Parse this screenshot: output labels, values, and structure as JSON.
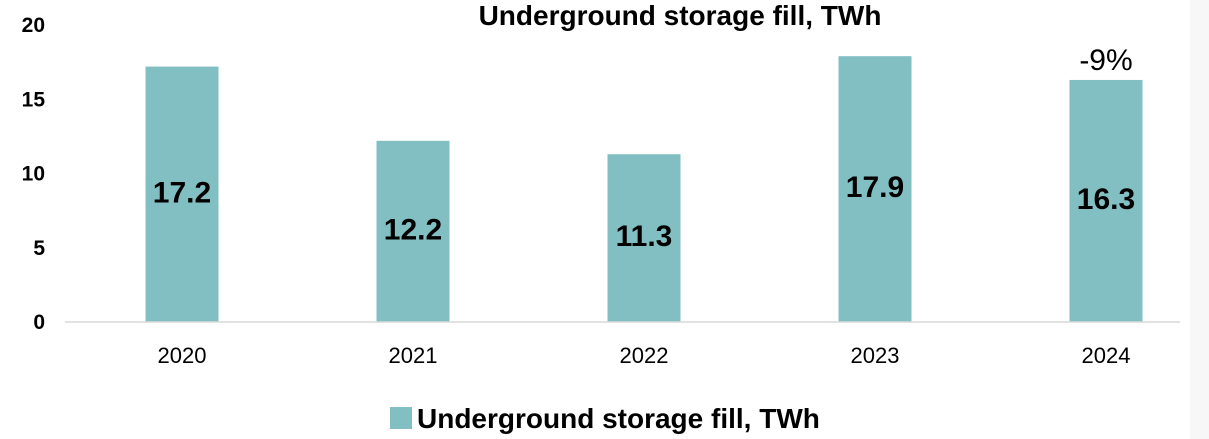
{
  "chart_data": {
    "type": "bar",
    "title": "Underground storage fill, TWh",
    "categories": [
      "2020",
      "2021",
      "2022",
      "2023",
      "2024"
    ],
    "series": [
      {
        "name": "Underground storage fill, TWh",
        "values": [
          17.2,
          12.2,
          11.3,
          17.9,
          16.3
        ],
        "labels": [
          "17.2",
          "12.2",
          "11.3",
          "17.9",
          "16.3"
        ]
      }
    ],
    "yticks": [
      "0",
      "5",
      "10",
      "15",
      "20"
    ],
    "ylim": [
      0,
      20
    ],
    "grid": false,
    "legend_position": "bottom-center",
    "annotation": {
      "category": "2024",
      "text": "-9%"
    },
    "colors": {
      "bar": "#82bfc2",
      "axis": "#d9d9d9",
      "text": "#000000"
    }
  }
}
